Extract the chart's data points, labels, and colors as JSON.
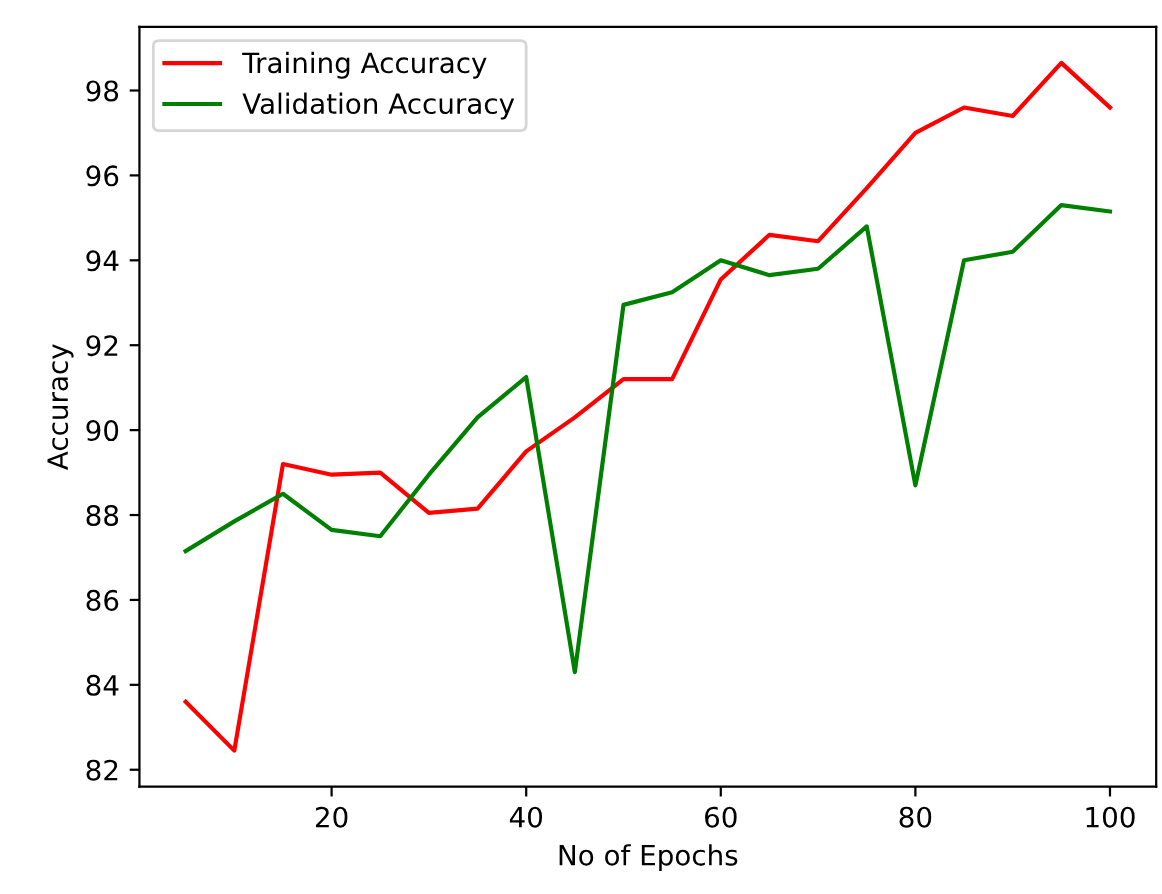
{
  "chart_data": {
    "type": "line",
    "xlabel": "No of Epochs",
    "ylabel": "Accuracy",
    "x": [
      5,
      10,
      15,
      20,
      25,
      30,
      35,
      40,
      45,
      50,
      55,
      60,
      65,
      70,
      75,
      80,
      85,
      90,
      95,
      100
    ],
    "series": [
      {
        "name": "Training Accuracy",
        "color": "#ff0000",
        "values": [
          83.6,
          82.45,
          89.2,
          88.95,
          89.0,
          88.05,
          88.15,
          89.5,
          90.3,
          91.2,
          91.2,
          93.55,
          94.6,
          94.45,
          95.7,
          97.0,
          97.6,
          97.4,
          98.65,
          97.6
        ]
      },
      {
        "name": "Validation Accuracy",
        "color": "#008000",
        "values": [
          87.15,
          87.85,
          88.5,
          87.65,
          87.5,
          88.95,
          90.3,
          91.25,
          84.3,
          92.95,
          93.25,
          94.0,
          93.65,
          93.8,
          94.8,
          88.7,
          94.0,
          94.2,
          95.3,
          95.15
        ]
      }
    ],
    "xlim": [
      0.25,
      104.75
    ],
    "ylim": [
      81.6,
      99.5
    ],
    "xticks": [
      20,
      40,
      60,
      80,
      100
    ],
    "yticks": [
      82,
      84,
      86,
      88,
      90,
      92,
      94,
      96,
      98
    ],
    "grid": false,
    "legend": "top left",
    "marker": "none",
    "line_style": "solid"
  }
}
